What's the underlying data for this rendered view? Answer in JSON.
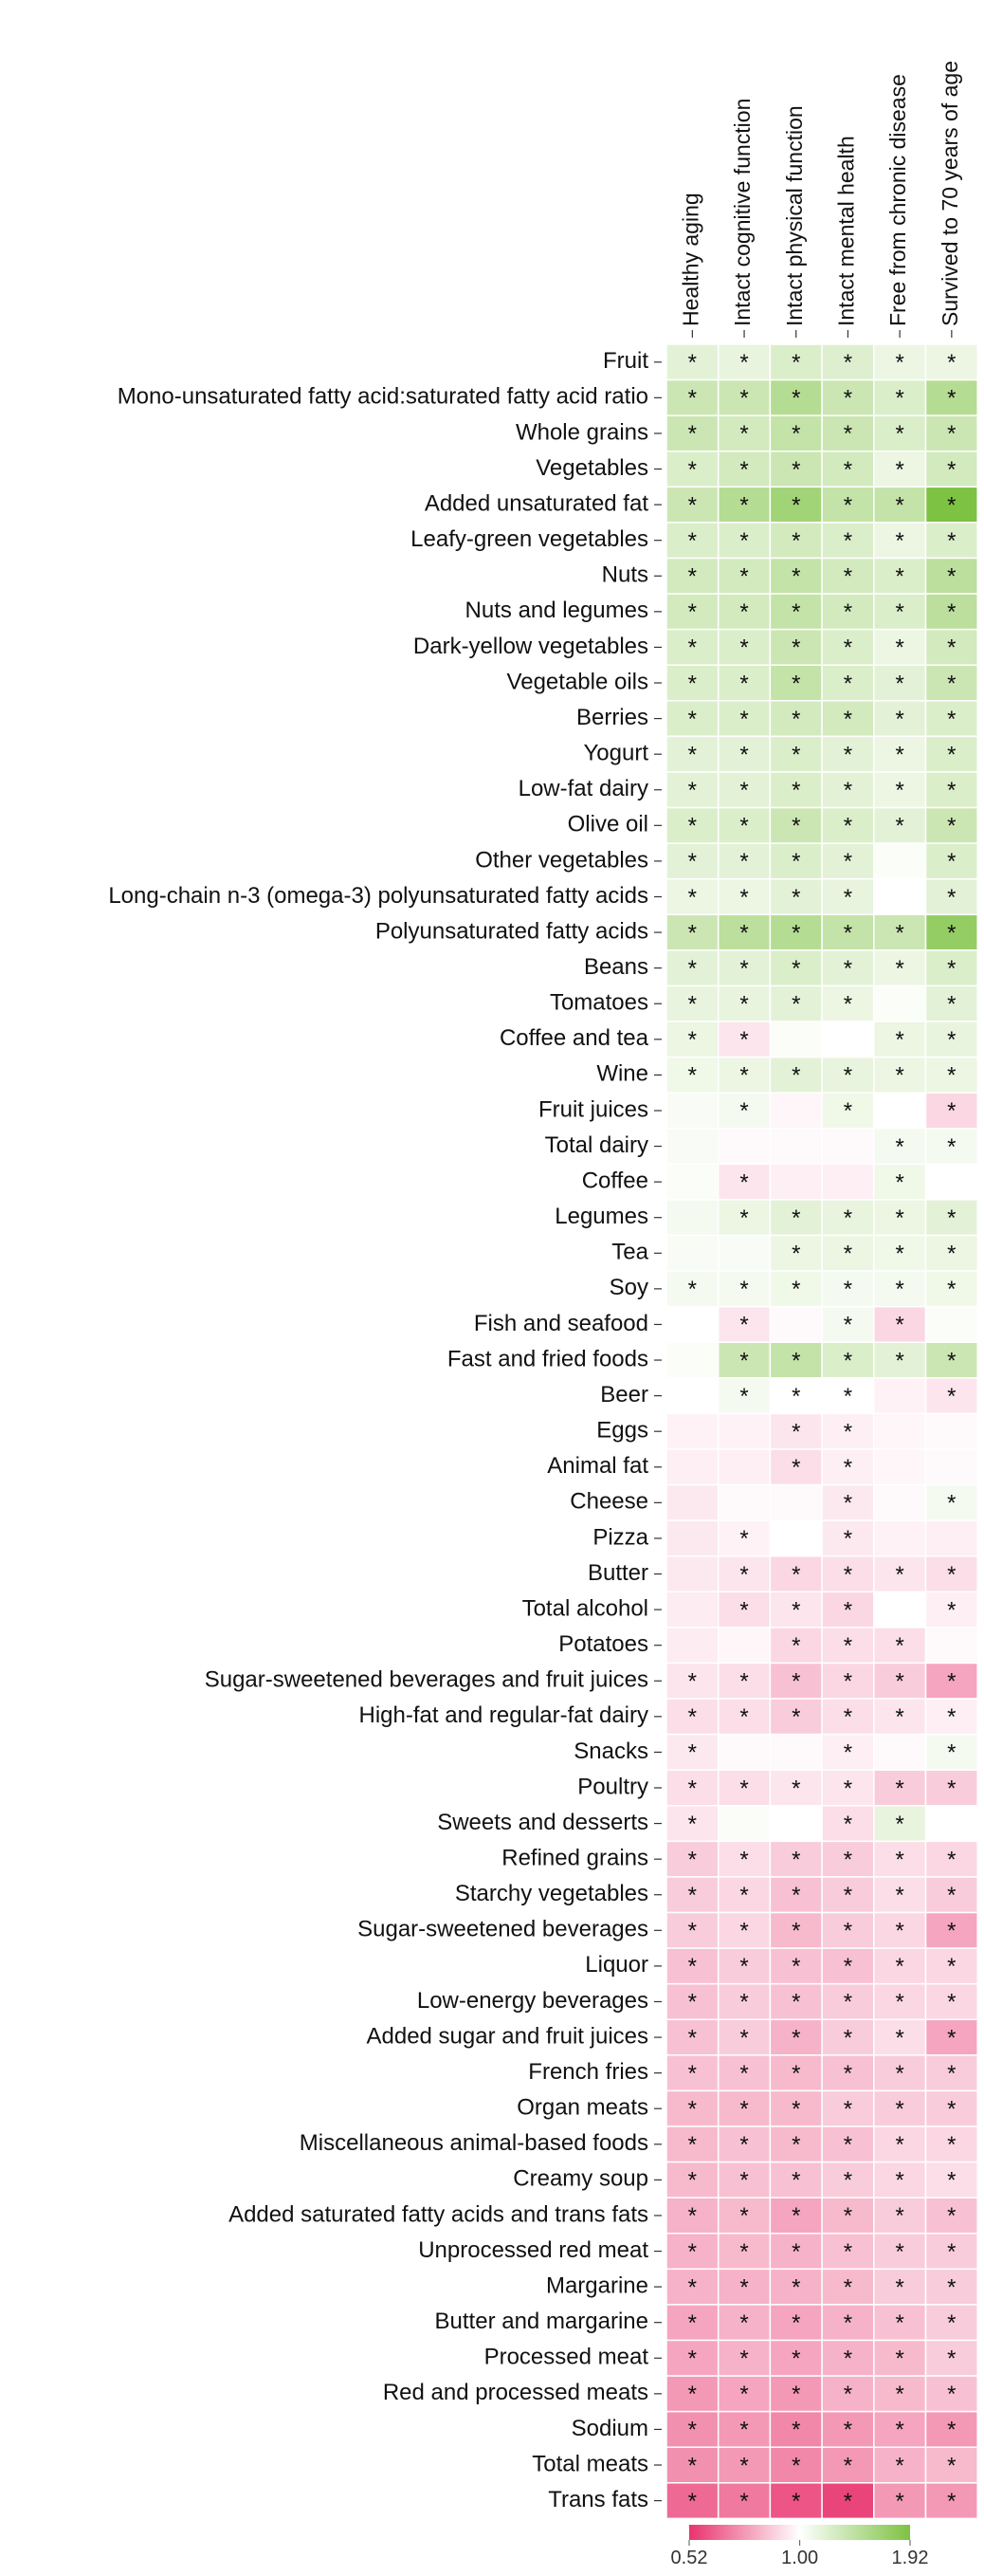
{
  "chart_data": {
    "type": "heatmap",
    "columns": [
      "Healthy aging",
      "Intact cognitive function",
      "Intact physical function",
      "Intact mental health",
      "Free from chronic disease",
      "Survived to 70 years of age"
    ],
    "rows": [
      "Fruit",
      "Mono-unsaturated fatty acid:saturated fatty acid ratio",
      "Whole grains",
      "Vegetables",
      "Added unsaturated fat",
      "Leafy-green vegetables",
      "Nuts",
      "Nuts and legumes",
      "Dark-yellow vegetables",
      "Vegetable oils",
      "Berries",
      "Yogurt",
      "Low-fat dairy",
      "Olive oil",
      "Other vegetables",
      "Long-chain n-3 (omega-3) polyunsaturated fatty acids",
      "Polyunsaturated fatty acids",
      "Beans",
      "Tomatoes",
      "Coffee and tea",
      "Wine",
      "Fruit juices",
      "Total dairy",
      "Coffee",
      "Legumes",
      "Tea",
      "Soy",
      "Fish and seafood",
      "Fast and fried foods",
      "Beer",
      "Eggs",
      "Animal fat",
      "Cheese",
      "Pizza",
      "Butter",
      "Total alcohol",
      "Potatoes",
      "Sugar-sweetened beverages and fruit juices",
      "High-fat and regular-fat dairy",
      "Snacks",
      "Poultry",
      "Sweets and desserts",
      "Refined grains",
      "Starchy vegetables",
      "Sugar-sweetened beverages",
      "Liquor",
      "Low-energy beverages",
      "Added sugar and fruit juices",
      "French fries",
      "Organ meats",
      "Miscellaneous animal-based foods",
      "Creamy soup",
      "Added saturated fatty acids and trans fats",
      "Unprocessed red meat",
      "Margarine",
      "Butter and margarine",
      "Processed meat",
      "Red and processed meats",
      "Sodium",
      "Total meats",
      "Trans fats"
    ],
    "values": [
      [
        1.15,
        1.12,
        1.2,
        1.18,
        1.1,
        1.1
      ],
      [
        1.3,
        1.3,
        1.45,
        1.3,
        1.2,
        1.45
      ],
      [
        1.3,
        1.25,
        1.35,
        1.3,
        1.2,
        1.3
      ],
      [
        1.2,
        1.25,
        1.3,
        1.25,
        1.1,
        1.25
      ],
      [
        1.3,
        1.45,
        1.6,
        1.35,
        1.35,
        1.92
      ],
      [
        1.2,
        1.2,
        1.25,
        1.2,
        1.1,
        1.2
      ],
      [
        1.25,
        1.25,
        1.35,
        1.25,
        1.2,
        1.4
      ],
      [
        1.25,
        1.25,
        1.35,
        1.25,
        1.2,
        1.4
      ],
      [
        1.2,
        1.2,
        1.3,
        1.2,
        1.1,
        1.25
      ],
      [
        1.2,
        1.2,
        1.35,
        1.2,
        1.15,
        1.3
      ],
      [
        1.2,
        1.2,
        1.25,
        1.25,
        1.15,
        1.2
      ],
      [
        1.15,
        1.15,
        1.2,
        1.15,
        1.1,
        1.2
      ],
      [
        1.15,
        1.15,
        1.2,
        1.15,
        1.1,
        1.2
      ],
      [
        1.2,
        1.2,
        1.3,
        1.2,
        1.15,
        1.3
      ],
      [
        1.15,
        1.15,
        1.2,
        1.15,
        1.02,
        1.2
      ],
      [
        1.1,
        1.1,
        1.15,
        1.12,
        1.0,
        1.15
      ],
      [
        1.3,
        1.4,
        1.45,
        1.35,
        1.3,
        1.7
      ],
      [
        1.15,
        1.15,
        1.2,
        1.15,
        1.1,
        1.2
      ],
      [
        1.12,
        1.12,
        1.15,
        1.1,
        1.02,
        1.15
      ],
      [
        1.1,
        0.92,
        1.02,
        1.0,
        1.1,
        1.12
      ],
      [
        1.08,
        1.1,
        1.15,
        1.12,
        1.1,
        1.1
      ],
      [
        1.03,
        1.05,
        0.97,
        1.08,
        1.0,
        0.88
      ],
      [
        1.03,
        0.98,
        0.98,
        0.98,
        1.05,
        1.05
      ],
      [
        1.02,
        0.92,
        0.95,
        0.95,
        1.08,
        1.0
      ],
      [
        1.05,
        1.1,
        1.15,
        1.12,
        1.1,
        1.15
      ],
      [
        1.03,
        1.03,
        1.1,
        1.1,
        1.08,
        1.1
      ],
      [
        1.05,
        1.05,
        1.08,
        1.05,
        1.05,
        1.08
      ],
      [
        1.0,
        0.92,
        0.98,
        1.05,
        0.88,
        1.02
      ],
      [
        1.02,
        1.3,
        1.35,
        1.2,
        1.15,
        1.3
      ],
      [
        1.0,
        1.05,
        1.0,
        1.0,
        0.96,
        0.92
      ],
      [
        0.96,
        0.96,
        0.92,
        0.95,
        0.97,
        0.98
      ],
      [
        0.95,
        0.95,
        0.9,
        0.95,
        0.97,
        0.98
      ],
      [
        0.93,
        0.98,
        0.98,
        0.93,
        0.98,
        1.05
      ],
      [
        0.93,
        0.96,
        1.0,
        0.93,
        0.96,
        0.95
      ],
      [
        0.93,
        0.92,
        0.88,
        0.9,
        0.92,
        0.9
      ],
      [
        0.94,
        0.9,
        0.92,
        0.88,
        1.0,
        0.95
      ],
      [
        0.94,
        0.97,
        0.88,
        0.9,
        0.9,
        0.98
      ],
      [
        0.92,
        0.9,
        0.82,
        0.88,
        0.85,
        0.75
      ],
      [
        0.9,
        0.9,
        0.85,
        0.9,
        0.92,
        0.95
      ],
      [
        0.93,
        0.98,
        0.98,
        0.95,
        0.98,
        1.05
      ],
      [
        0.9,
        0.9,
        0.92,
        0.92,
        0.85,
        0.85
      ],
      [
        0.92,
        1.02,
        1.0,
        0.9,
        1.12,
        1.0
      ],
      [
        0.85,
        0.9,
        0.85,
        0.85,
        0.9,
        0.88
      ],
      [
        0.85,
        0.88,
        0.82,
        0.85,
        0.9,
        0.85
      ],
      [
        0.85,
        0.88,
        0.8,
        0.85,
        0.88,
        0.75
      ],
      [
        0.82,
        0.85,
        0.82,
        0.82,
        0.88,
        0.88
      ],
      [
        0.82,
        0.85,
        0.82,
        0.85,
        0.88,
        0.88
      ],
      [
        0.82,
        0.85,
        0.78,
        0.85,
        0.9,
        0.75
      ],
      [
        0.82,
        0.82,
        0.8,
        0.82,
        0.85,
        0.85
      ],
      [
        0.8,
        0.8,
        0.8,
        0.85,
        0.85,
        0.85
      ],
      [
        0.8,
        0.82,
        0.8,
        0.82,
        0.88,
        0.88
      ],
      [
        0.8,
        0.82,
        0.82,
        0.85,
        0.88,
        0.9
      ],
      [
        0.78,
        0.8,
        0.75,
        0.8,
        0.85,
        0.82
      ],
      [
        0.78,
        0.8,
        0.78,
        0.82,
        0.85,
        0.85
      ],
      [
        0.78,
        0.78,
        0.78,
        0.8,
        0.85,
        0.85
      ],
      [
        0.75,
        0.78,
        0.75,
        0.78,
        0.82,
        0.85
      ],
      [
        0.75,
        0.78,
        0.75,
        0.78,
        0.8,
        0.85
      ],
      [
        0.72,
        0.75,
        0.72,
        0.78,
        0.8,
        0.82
      ],
      [
        0.7,
        0.72,
        0.68,
        0.72,
        0.75,
        0.72
      ],
      [
        0.7,
        0.72,
        0.68,
        0.72,
        0.78,
        0.8
      ],
      [
        0.62,
        0.65,
        0.58,
        0.55,
        0.72,
        0.72
      ]
    ],
    "stars": [
      [
        "*",
        "*",
        "*",
        "*",
        "*",
        "*"
      ],
      [
        "*",
        "*",
        "*",
        "*",
        "*",
        "*"
      ],
      [
        "*",
        "*",
        "*",
        "*",
        "*",
        "*"
      ],
      [
        "*",
        "*",
        "*",
        "*",
        "*",
        "*"
      ],
      [
        "*",
        "*",
        "*",
        "*",
        "*",
        "*"
      ],
      [
        "*",
        "*",
        "*",
        "*",
        "*",
        "*"
      ],
      [
        "*",
        "*",
        "*",
        "*",
        "*",
        "*"
      ],
      [
        "*",
        "*",
        "*",
        "*",
        "*",
        "*"
      ],
      [
        "*",
        "*",
        "*",
        "*",
        "*",
        "*"
      ],
      [
        "*",
        "*",
        "*",
        "*",
        "*",
        "*"
      ],
      [
        "*",
        "*",
        "*",
        "*",
        "*",
        "*"
      ],
      [
        "*",
        "*",
        "*",
        "*",
        "*",
        "*"
      ],
      [
        "*",
        "*",
        "*",
        "*",
        "*",
        "*"
      ],
      [
        "*",
        "*",
        "*",
        "*",
        "*",
        "*"
      ],
      [
        "*",
        "*",
        "*",
        "*",
        null,
        "*"
      ],
      [
        "*",
        "*",
        "*",
        "*",
        null,
        "*"
      ],
      [
        "*",
        "*",
        "*",
        "*",
        "*",
        "*"
      ],
      [
        "*",
        "*",
        "*",
        "*",
        "*",
        "*"
      ],
      [
        "*",
        "*",
        "*",
        "*",
        null,
        "*"
      ],
      [
        "*",
        "*",
        null,
        null,
        "*",
        "*"
      ],
      [
        "*",
        "*",
        "*",
        "*",
        "*",
        "*"
      ],
      [
        null,
        "*",
        null,
        "*",
        null,
        "*"
      ],
      [
        null,
        null,
        null,
        null,
        "*",
        "*"
      ],
      [
        null,
        "*",
        null,
        null,
        "*",
        null
      ],
      [
        null,
        "*",
        "*",
        "*",
        "*",
        "*"
      ],
      [
        null,
        null,
        "*",
        "*",
        "*",
        "*"
      ],
      [
        "*",
        "*",
        "*",
        "*",
        "*",
        "*"
      ],
      [
        null,
        "*",
        null,
        "*",
        "*",
        null
      ],
      [
        null,
        "*",
        "*",
        "*",
        "*",
        "*"
      ],
      [
        null,
        "*",
        "*",
        "*",
        null,
        "*"
      ],
      [
        null,
        null,
        "*",
        "*",
        null,
        null
      ],
      [
        null,
        null,
        "*",
        "*",
        null,
        null
      ],
      [
        null,
        null,
        null,
        "*",
        null,
        "*"
      ],
      [
        null,
        "*",
        null,
        "*",
        null,
        null
      ],
      [
        null,
        "*",
        "*",
        "*",
        "*",
        "*"
      ],
      [
        null,
        "*",
        "*",
        "*",
        null,
        "*"
      ],
      [
        null,
        null,
        "*",
        "*",
        "*",
        null
      ],
      [
        "*",
        "*",
        "*",
        "*",
        "*",
        "*"
      ],
      [
        "*",
        "*",
        "*",
        "*",
        "*",
        "*"
      ],
      [
        "*",
        null,
        null,
        "*",
        null,
        "*"
      ],
      [
        "*",
        "*",
        "*",
        "*",
        "*",
        "*"
      ],
      [
        "*",
        null,
        null,
        "*",
        "*",
        null
      ],
      [
        "*",
        "*",
        "*",
        "*",
        "*",
        "*"
      ],
      [
        "*",
        "*",
        "*",
        "*",
        "*",
        "*"
      ],
      [
        "*",
        "*",
        "*",
        "*",
        "*",
        "*"
      ],
      [
        "*",
        "*",
        "*",
        "*",
        "*",
        "*"
      ],
      [
        "*",
        "*",
        "*",
        "*",
        "*",
        "*"
      ],
      [
        "*",
        "*",
        "*",
        "*",
        "*",
        "*"
      ],
      [
        "*",
        "*",
        "*",
        "*",
        "*",
        "*"
      ],
      [
        "*",
        "*",
        "*",
        "*",
        "*",
        "*"
      ],
      [
        "*",
        "*",
        "*",
        "*",
        "*",
        "*"
      ],
      [
        "*",
        "*",
        "*",
        "*",
        "*",
        "*"
      ],
      [
        "*",
        "*",
        "*",
        "*",
        "*",
        "*"
      ],
      [
        "*",
        "*",
        "*",
        "*",
        "*",
        "*"
      ],
      [
        "*",
        "*",
        "*",
        "*",
        "*",
        "*"
      ],
      [
        "*",
        "*",
        "*",
        "*",
        "*",
        "*"
      ],
      [
        "*",
        "*",
        "*",
        "*",
        "*",
        "*"
      ],
      [
        "*",
        "*",
        "*",
        "*",
        "*",
        "*"
      ],
      [
        "*",
        "*",
        "*",
        "*",
        "*",
        "*"
      ],
      [
        "*",
        "*",
        "*",
        "*",
        "*",
        "*"
      ],
      [
        "*",
        "*",
        "*",
        "*",
        "*",
        "*"
      ]
    ],
    "colorbar": {
      "lim": [
        0.52,
        1.92
      ],
      "ticks": [
        0.52,
        {
          "value": 1,
          "label": "1.00"
        },
        1.92
      ],
      "scale": "log",
      "colors": [
        "#e8336d",
        "#ffffff",
        "#7dc242"
      ]
    }
  }
}
